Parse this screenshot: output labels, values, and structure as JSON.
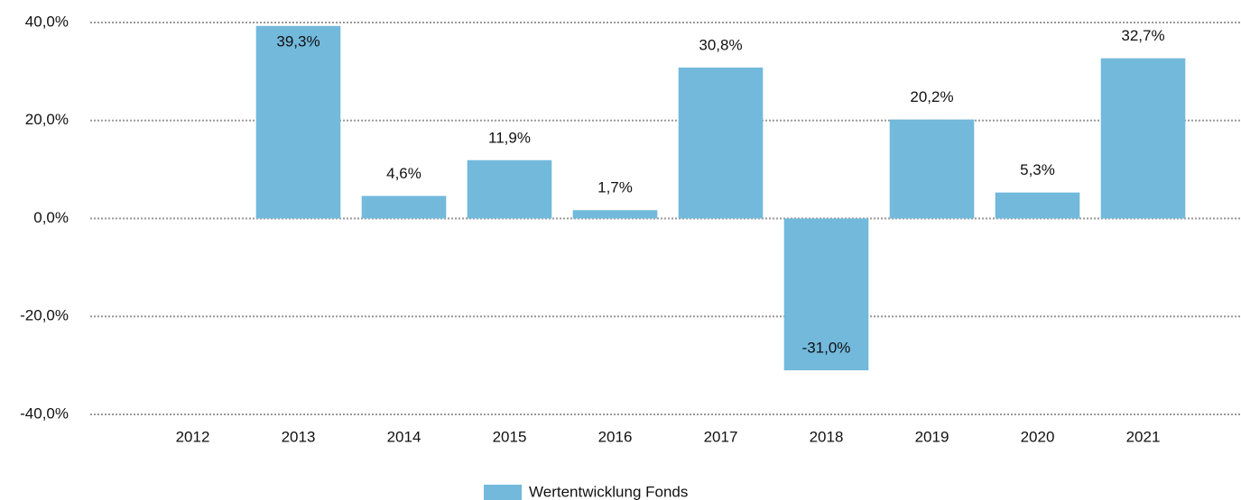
{
  "chart_data": {
    "type": "bar",
    "categories": [
      "2012",
      "2013",
      "2014",
      "2015",
      "2016",
      "2017",
      "2018",
      "2019",
      "2020",
      "2021"
    ],
    "values": [
      null,
      39.3,
      4.6,
      11.9,
      1.7,
      30.8,
      -31.0,
      20.2,
      5.3,
      32.7
    ],
    "value_labels": [
      null,
      "39,3%",
      "4,6%",
      "11,9%",
      "1,7%",
      "30,8%",
      "-31,0%",
      "20,2%",
      "5,3%",
      "32,7%"
    ],
    "color": "#72b9dc",
    "ylim": [
      -40,
      40
    ],
    "yticks": [
      {
        "value": -40,
        "label": "-40,0%"
      },
      {
        "value": -20,
        "label": "-20,0%"
      },
      {
        "value": 0,
        "label": "0,0%"
      },
      {
        "value": 20,
        "label": "20,0%"
      },
      {
        "value": 40,
        "label": "40,0%"
      }
    ],
    "grid": true,
    "legend": "bottom",
    "series_name": "Wertentwicklung Fonds"
  }
}
